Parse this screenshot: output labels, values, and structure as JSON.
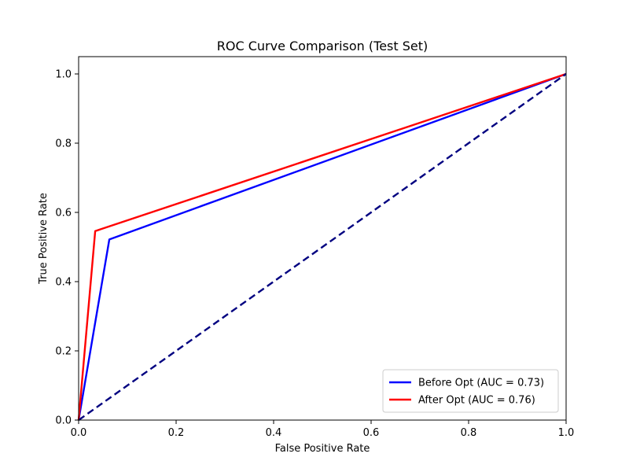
{
  "chart_data": {
    "type": "line",
    "title": "ROC Curve Comparison (Test Set)",
    "xlabel": "False Positive Rate",
    "ylabel": "True Positive Rate",
    "xlim": [
      0.0,
      1.0
    ],
    "ylim": [
      0.0,
      1.05
    ],
    "x_ticks": [
      0.0,
      0.2,
      0.4,
      0.6,
      0.8,
      1.0
    ],
    "y_ticks": [
      0.0,
      0.2,
      0.4,
      0.6,
      0.8,
      1.0
    ],
    "x_tick_labels": [
      "0.0",
      "0.2",
      "0.4",
      "0.6",
      "0.8",
      "1.0"
    ],
    "y_tick_labels": [
      "0.0",
      "0.2",
      "0.4",
      "0.6",
      "0.8",
      "1.0"
    ],
    "grid": false,
    "legend_position": "bottom-right",
    "series": [
      {
        "name": "Before Opt (AUC = 0.73)",
        "color": "#0000ff",
        "style": "solid",
        "x": [
          0.0,
          0.063,
          1.0
        ],
        "y": [
          0.0,
          0.522,
          1.0
        ]
      },
      {
        "name": "After Opt (AUC = 0.76)",
        "color": "#ff0000",
        "style": "solid",
        "x": [
          0.0,
          0.034,
          1.0
        ],
        "y": [
          0.0,
          0.546,
          1.0
        ]
      },
      {
        "name": "",
        "color": "#000080",
        "style": "dashed",
        "x": [
          0.0,
          1.0
        ],
        "y": [
          0.0,
          1.0
        ]
      }
    ]
  }
}
